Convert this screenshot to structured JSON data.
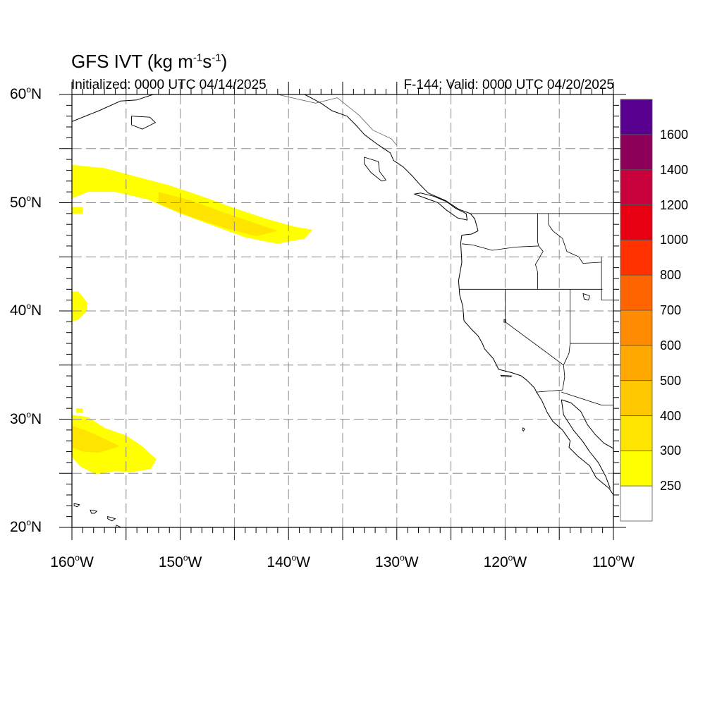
{
  "title": {
    "prefix": "GFS IVT (kg m",
    "exp1": "-1",
    "mid": "s",
    "exp2": "-1",
    "suffix": ")"
  },
  "subtitle_left": "Initialized: 0000 UTC 04/14/2025",
  "subtitle_right": "F-144: Valid: 0000 UTC 04/20/2025",
  "map": {
    "projection": "cylindrical equidistant",
    "lon_range": [
      -160,
      -110
    ],
    "lat_range": [
      20,
      60
    ],
    "gridline_style": "dashed",
    "lat_labels": [
      {
        "value": 60,
        "text": "60",
        "suffix": "N"
      },
      {
        "value": 50,
        "text": "50",
        "suffix": "N"
      },
      {
        "value": 40,
        "text": "40",
        "suffix": "N"
      },
      {
        "value": 30,
        "text": "30",
        "suffix": "N"
      },
      {
        "value": 20,
        "text": "20",
        "suffix": "N"
      }
    ],
    "lon_labels": [
      {
        "value": -160,
        "text": "160",
        "suffix": "W"
      },
      {
        "value": -150,
        "text": "150",
        "suffix": "W"
      },
      {
        "value": -140,
        "text": "140",
        "suffix": "W"
      },
      {
        "value": -130,
        "text": "130",
        "suffix": "W"
      },
      {
        "value": -120,
        "text": "120",
        "suffix": "W"
      },
      {
        "value": -110,
        "text": "110",
        "suffix": "W"
      }
    ]
  },
  "colorbar": {
    "levels": [
      "250",
      "300",
      "400",
      "500",
      "600",
      "700",
      "800",
      "1000",
      "1200",
      "1400",
      "1600"
    ],
    "colors": [
      "#ffffff",
      "#ffff00",
      "#ffe400",
      "#ffc800",
      "#ffa900",
      "#ff8c00",
      "#ff6400",
      "#ff3200",
      "#e60012",
      "#c8003c",
      "#8c005a",
      "#5a0090"
    ]
  },
  "ivt_regions": [
    {
      "name": "northern-plume",
      "category": "250-300",
      "color": "#ffff00",
      "polygon": [
        [
          -160,
          53.5
        ],
        [
          -157,
          53.2
        ],
        [
          -154,
          52.4
        ],
        [
          -151,
          51.6
        ],
        [
          -148,
          50.6
        ],
        [
          -145,
          49.5
        ],
        [
          -142,
          48.5
        ],
        [
          -139.5,
          47.8
        ],
        [
          -137.8,
          47.5
        ],
        [
          -138.5,
          46.7
        ],
        [
          -141,
          46.2
        ],
        [
          -144,
          46.8
        ],
        [
          -147,
          47.9
        ],
        [
          -150,
          49.0
        ],
        [
          -153,
          50.3
        ],
        [
          -156,
          51.0
        ],
        [
          -158.5,
          51.0
        ],
        [
          -160,
          50.4
        ]
      ]
    },
    {
      "name": "northern-plume-core",
      "category": "300-400",
      "color": "#ffe400",
      "polygon": [
        [
          -152,
          51.0
        ],
        [
          -149,
          50.2
        ],
        [
          -146,
          49.1
        ],
        [
          -143,
          48.1
        ],
        [
          -141,
          47.4
        ],
        [
          -143,
          46.9
        ],
        [
          -146,
          47.7
        ],
        [
          -149,
          48.7
        ],
        [
          -152,
          49.9
        ]
      ]
    },
    {
      "name": "northern-speck",
      "category": "250-300",
      "color": "#ffff00",
      "polygon": [
        [
          -160,
          49.6
        ],
        [
          -159,
          49.6
        ],
        [
          -159,
          49.0
        ],
        [
          -160,
          49.0
        ]
      ]
    },
    {
      "name": "central-blob",
      "category": "250-300",
      "color": "#ffff00",
      "polygon": [
        [
          -160,
          41.8
        ],
        [
          -159.4,
          41.8
        ],
        [
          -158.6,
          40.8
        ],
        [
          -158.6,
          40.0
        ],
        [
          -159.4,
          39.2
        ],
        [
          -160,
          39.0
        ]
      ]
    },
    {
      "name": "southern-plume",
      "category": "250-300",
      "color": "#ffff00",
      "polygon": [
        [
          -160,
          30.4
        ],
        [
          -158.5,
          30.2
        ],
        [
          -157,
          29.2
        ],
        [
          -155,
          28.5
        ],
        [
          -153.5,
          27.5
        ],
        [
          -152.2,
          26.3
        ],
        [
          -152.7,
          25.4
        ],
        [
          -154.5,
          25.1
        ],
        [
          -156,
          25.2
        ],
        [
          -157.8,
          24.9
        ],
        [
          -159.2,
          25.6
        ],
        [
          -160,
          26.5
        ]
      ]
    },
    {
      "name": "southern-plume-core",
      "category": "300-400",
      "color": "#ffe400",
      "polygon": [
        [
          -160,
          29.4
        ],
        [
          -158.8,
          29.0
        ],
        [
          -157,
          28.2
        ],
        [
          -155.6,
          27.5
        ],
        [
          -157.5,
          26.9
        ],
        [
          -159,
          27.0
        ],
        [
          -160,
          27.4
        ]
      ]
    },
    {
      "name": "southern-speck",
      "category": "250-300",
      "color": "#ffff00",
      "polygon": [
        [
          -159.6,
          31.0
        ],
        [
          -159.0,
          31.0
        ],
        [
          -159.0,
          30.6
        ],
        [
          -159.6,
          30.6
        ]
      ]
    }
  ],
  "coastline": [
    [
      -138.5,
      60.0
    ],
    [
      -137,
      59.2
    ],
    [
      -136,
      58.5
    ],
    [
      -134.6,
      58.0
    ],
    [
      -133.8,
      57.2
    ],
    [
      -133,
      56.3
    ],
    [
      -131.8,
      55.4
    ],
    [
      -130.6,
      54.6
    ],
    [
      -130.3,
      53.9
    ],
    [
      -129.4,
      53.3
    ],
    [
      -128.6,
      52.5
    ],
    [
      -127.8,
      51.6
    ],
    [
      -127.1,
      50.9
    ],
    [
      -125.5,
      50.2
    ],
    [
      -124.3,
      49.4
    ],
    [
      -123.2,
      49.0
    ],
    [
      -122.8,
      48.5
    ],
    [
      -122.5,
      47.4
    ],
    [
      -123.1,
      47.1
    ],
    [
      -124.0,
      47.0
    ],
    [
      -124.1,
      46.3
    ],
    [
      -124.0,
      44.5
    ],
    [
      -124.3,
      42.8
    ],
    [
      -124.2,
      41.5
    ],
    [
      -123.9,
      40.4
    ],
    [
      -123.8,
      39.1
    ],
    [
      -123.1,
      38.3
    ],
    [
      -122.5,
      37.7
    ],
    [
      -122.1,
      37.0
    ],
    [
      -121.9,
      36.5
    ],
    [
      -121.1,
      35.6
    ],
    [
      -120.6,
      34.6
    ],
    [
      -119.4,
      34.3
    ],
    [
      -118.5,
      34.0
    ],
    [
      -118.0,
      33.6
    ],
    [
      -117.3,
      32.9
    ],
    [
      -117.1,
      32.5
    ],
    [
      -116.6,
      31.7
    ],
    [
      -116.1,
      30.6
    ],
    [
      -115.6,
      29.8
    ],
    [
      -114.7,
      29.0
    ],
    [
      -114.0,
      28.0
    ],
    [
      -114.1,
      27.4
    ],
    [
      -113.3,
      26.6
    ],
    [
      -112.2,
      25.7
    ],
    [
      -111.6,
      24.6
    ],
    [
      -110.4,
      23.6
    ],
    [
      -110.0,
      23.0
    ]
  ],
  "vi_coast": [
    [
      -128.4,
      50.8
    ],
    [
      -127.3,
      50.4
    ],
    [
      -126.2,
      50.0
    ],
    [
      -125.4,
      49.3
    ],
    [
      -124.4,
      48.6
    ],
    [
      -123.5,
      48.4
    ],
    [
      -123.6,
      49.0
    ],
    [
      -124.6,
      49.5
    ],
    [
      -125.4,
      50.1
    ],
    [
      -126.6,
      50.6
    ],
    [
      -127.8,
      50.9
    ],
    [
      -128.4,
      50.8
    ]
  ],
  "gulf_coast": [
    [
      -114.8,
      31.8
    ],
    [
      -113.9,
      31.5
    ],
    [
      -113.0,
      30.7
    ],
    [
      -112.4,
      29.5
    ],
    [
      -111.7,
      28.6
    ],
    [
      -110.9,
      27.8
    ],
    [
      -109.5,
      27.0
    ],
    [
      -108.5,
      25.8
    ],
    [
      -109.5,
      24.6
    ],
    [
      -110.0,
      23.8
    ],
    [
      -110.0,
      23.0
    ]
  ],
  "baja_gulf_side": [
    [
      -114.8,
      31.8
    ],
    [
      -114.6,
      30.4
    ],
    [
      -113.7,
      29.0
    ],
    [
      -112.8,
      27.9
    ],
    [
      -112.2,
      27.0
    ],
    [
      -111.4,
      26.0
    ],
    [
      -110.7,
      24.7
    ],
    [
      -110.3,
      23.6
    ]
  ],
  "alaska_coast": [
    [
      -160,
      57.5
    ],
    [
      -157.5,
      58.5
    ],
    [
      -155.5,
      59.4
    ],
    [
      -154,
      59.5
    ],
    [
      -152.5,
      60.0
    ]
  ],
  "intl_border": [
    [
      -141.0,
      60.0
    ],
    [
      -141.0,
      60.0
    ],
    [
      -137.5,
      59.2
    ],
    [
      -135.5,
      59.7
    ],
    [
      -134.5,
      58.9
    ],
    [
      -133.5,
      58.1
    ],
    [
      -132.2,
      56.7
    ],
    [
      -130.5,
      55.9
    ],
    [
      -130.0,
      55.3
    ]
  ],
  "state_borders": [
    [
      [
        -123.2,
        49.0
      ],
      [
        -110,
        49.0
      ]
    ],
    [
      [
        -124.0,
        46.2
      ],
      [
        -123.0,
        46.1
      ],
      [
        -121.2,
        45.6
      ],
      [
        -119.0,
        45.9
      ],
      [
        -116.9,
        46.0
      ]
    ],
    [
      [
        -117.0,
        49.0
      ],
      [
        -117.0,
        46.4
      ],
      [
        -116.9,
        46.0
      ],
      [
        -116.5,
        45.5
      ],
      [
        -116.9,
        44.8
      ],
      [
        -117.2,
        44.3
      ],
      [
        -117.0,
        43.6
      ],
      [
        -117.0,
        42.0
      ]
    ],
    [
      [
        -124.2,
        42.0
      ],
      [
        -111.0,
        42.0
      ]
    ],
    [
      [
        -120.0,
        42.0
      ],
      [
        -120.0,
        39.0
      ],
      [
        -114.6,
        35.0
      ]
    ],
    [
      [
        -114.0,
        42.0
      ],
      [
        -114.0,
        37.0
      ],
      [
        -114.1,
        36.1
      ],
      [
        -114.6,
        35.0
      ],
      [
        -114.5,
        33.9
      ],
      [
        -114.7,
        32.7
      ],
      [
        -117.1,
        32.5
      ]
    ],
    [
      [
        -114.0,
        37.0
      ],
      [
        -110,
        37.0
      ]
    ],
    [
      [
        -114.8,
        32.5
      ],
      [
        -111.1,
        31.3
      ],
      [
        -110,
        31.3
      ]
    ],
    [
      [
        -116.0,
        49.0
      ],
      [
        -116.0,
        48.0
      ],
      [
        -115.6,
        47.4
      ],
      [
        -114.7,
        46.7
      ],
      [
        -114.3,
        45.5
      ],
      [
        -113.2,
        45.0
      ],
      [
        -112.8,
        44.4
      ],
      [
        -111.1,
        44.5
      ]
    ],
    [
      [
        -111.1,
        45.0
      ],
      [
        -111.1,
        41.0
      ],
      [
        -110,
        41.0
      ]
    ]
  ],
  "islands": [
    {
      "name": "hawaii",
      "polygon": [
        [
          -155.9,
          20.2
        ],
        [
          -155.0,
          19.8
        ],
        [
          -155.5,
          19.0
        ],
        [
          -156.0,
          19.6
        ]
      ]
    },
    {
      "name": "maui",
      "polygon": [
        [
          -156.7,
          21.0
        ],
        [
          -156.0,
          20.8
        ],
        [
          -156.3,
          20.6
        ],
        [
          -156.7,
          20.8
        ]
      ]
    },
    {
      "name": "oahu",
      "polygon": [
        [
          -158.3,
          21.6
        ],
        [
          -157.7,
          21.5
        ],
        [
          -157.9,
          21.3
        ],
        [
          -158.2,
          21.3
        ]
      ]
    },
    {
      "name": "kauai",
      "polygon": [
        [
          -159.8,
          22.2
        ],
        [
          -159.3,
          22.1
        ],
        [
          -159.5,
          21.9
        ],
        [
          -159.8,
          22.0
        ]
      ]
    },
    {
      "name": "haida-gwaii",
      "polygon": [
        [
          -133.0,
          54.2
        ],
        [
          -131.7,
          53.8
        ],
        [
          -131.6,
          52.9
        ],
        [
          -131.0,
          52.1
        ],
        [
          -131.4,
          52.0
        ],
        [
          -132.4,
          52.8
        ],
        [
          -133.0,
          53.6
        ]
      ]
    },
    {
      "name": "kodiak",
      "polygon": [
        [
          -154.5,
          58.0
        ],
        [
          -152.8,
          57.9
        ],
        [
          -152.3,
          57.4
        ],
        [
          -153.5,
          56.8
        ],
        [
          -154.5,
          57.2
        ]
      ]
    },
    {
      "name": "channel-isl",
      "polygon": [
        [
          -120.4,
          34.05
        ],
        [
          -119.4,
          34.0
        ],
        [
          -119.5,
          33.9
        ],
        [
          -120.3,
          33.95
        ]
      ]
    },
    {
      "name": "guadalupe",
      "polygon": [
        [
          -118.35,
          29.2
        ],
        [
          -118.2,
          29.1
        ],
        [
          -118.3,
          28.9
        ],
        [
          -118.4,
          29.0
        ]
      ]
    },
    {
      "name": "great-salt-lake",
      "polygon": [
        [
          -112.8,
          41.6
        ],
        [
          -112.2,
          41.4
        ],
        [
          -112.3,
          41.0
        ],
        [
          -112.7,
          41.1
        ]
      ]
    },
    {
      "name": "lake-tahoe",
      "polygon": [
        [
          -120.1,
          39.2
        ],
        [
          -119.95,
          39.2
        ],
        [
          -119.95,
          38.95
        ],
        [
          -120.1,
          38.95
        ]
      ]
    }
  ]
}
